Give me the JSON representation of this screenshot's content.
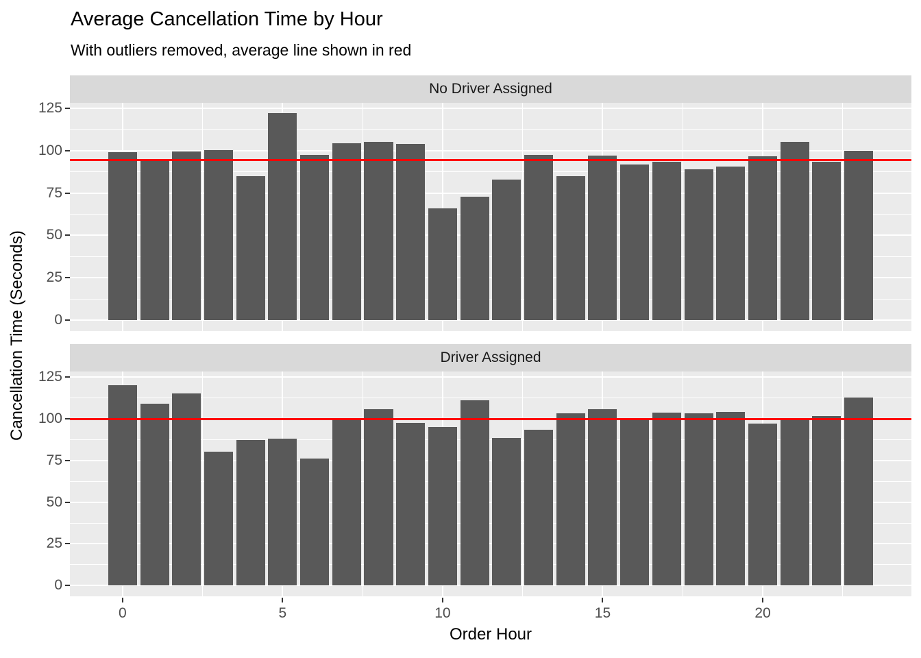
{
  "title": "Average Cancellation Time by Hour",
  "subtitle": "With outliers removed, average line shown in red",
  "chart_data": {
    "type": "bar",
    "faceted": true,
    "title": "Average Cancellation Time by Hour",
    "subtitle": "With outliers removed, average line shown in red",
    "xlabel": "Order Hour",
    "ylabel": "Cancellation Time (Seconds)",
    "hours": [
      0,
      1,
      2,
      3,
      4,
      5,
      6,
      7,
      8,
      9,
      10,
      11,
      12,
      13,
      14,
      15,
      16,
      17,
      18,
      19,
      20,
      21,
      22,
      23
    ],
    "x_ticks": [
      0,
      5,
      10,
      15,
      20
    ],
    "y_ticks": [
      0,
      25,
      50,
      75,
      100,
      125
    ],
    "xlim": [
      -1.645,
      24.645
    ],
    "ylim": [
      -6.4,
      128.2
    ],
    "grid": "major and minor, white on grey panel",
    "legend": "none",
    "facets": [
      {
        "label": "No Driver Assigned",
        "values": [
          99,
          94,
          99.5,
          100.5,
          85,
          122,
          97.5,
          104.5,
          105,
          104,
          66,
          73,
          83,
          97.5,
          85,
          97,
          92,
          93.5,
          89,
          90.5,
          96.5,
          105,
          93.5,
          100
        ],
        "avg_line": 94.6
      },
      {
        "label": "Driver Assigned",
        "values": [
          120,
          109,
          115,
          80,
          87,
          88,
          76,
          99,
          105.5,
          97.5,
          95,
          111,
          88.5,
          93.5,
          103,
          105.5,
          99,
          103.5,
          103,
          104,
          97,
          100.5,
          101.5,
          112.5
        ],
        "avg_line": 99.7
      }
    ],
    "colors": {
      "bar": "#595959",
      "panel_background": "#EBEBEB",
      "strip_background": "#D9D9D9",
      "gridline": "#FFFFFF",
      "avg_line": "#FF0000",
      "axis_text": "#4D4D4D",
      "strip_text": "#1A1A1A",
      "title_text": "#000000"
    }
  }
}
